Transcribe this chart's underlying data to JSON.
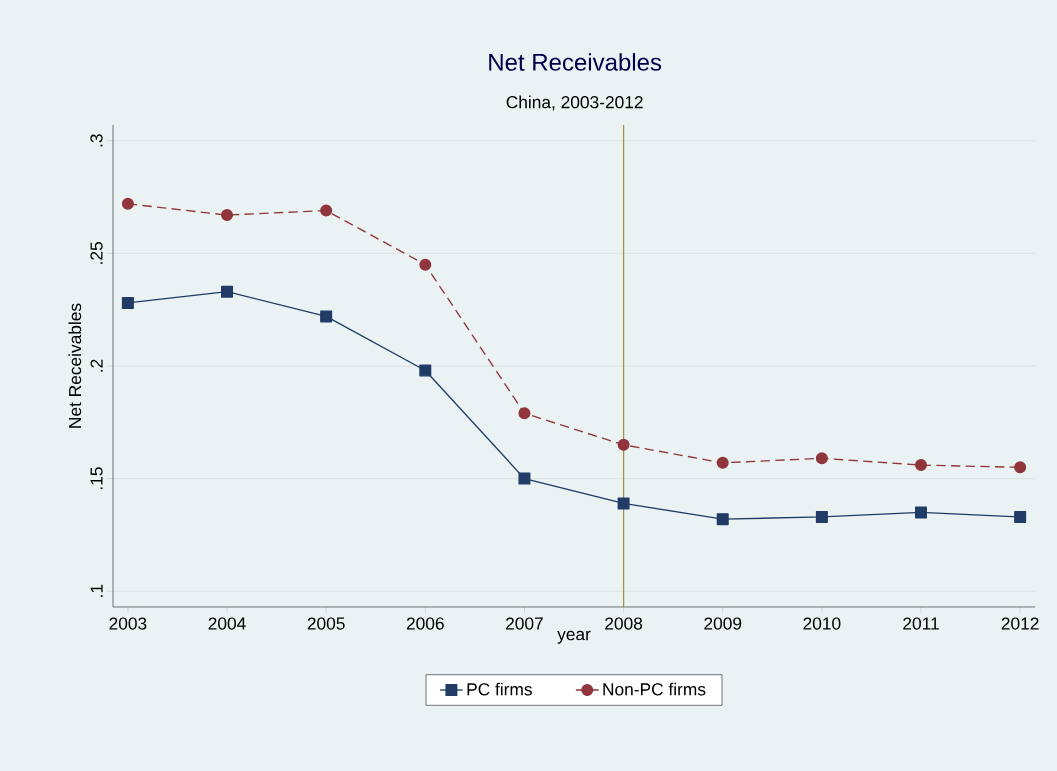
{
  "chart_data": {
    "type": "line",
    "title": "Net Receivables",
    "subtitle": "China, 2003-2012",
    "xlabel": "year",
    "ylabel": "Net Receivables",
    "x": [
      2003,
      2004,
      2005,
      2006,
      2007,
      2008,
      2009,
      2010,
      2011,
      2012
    ],
    "series": [
      {
        "name": "PC firms",
        "color": "#1f3b66",
        "marker": "square",
        "line_style": "solid",
        "values": [
          0.228,
          0.233,
          0.222,
          0.198,
          0.15,
          0.139,
          0.132,
          0.133,
          0.135,
          0.133
        ]
      },
      {
        "name": "Non-PC firms",
        "color": "#90353b",
        "marker": "circle",
        "line_style": "dashed",
        "values": [
          0.272,
          0.267,
          0.269,
          0.245,
          0.179,
          0.165,
          0.157,
          0.159,
          0.156,
          0.155
        ]
      }
    ],
    "xlim": [
      2002.85,
      2012.15
    ],
    "xticks": [
      2003,
      2004,
      2005,
      2006,
      2007,
      2008,
      2009,
      2010,
      2011,
      2012
    ],
    "ylim": [
      0.093,
      0.307
    ],
    "yticks": [
      {
        "value": 0.1,
        "label": ".1"
      },
      {
        "value": 0.15,
        "label": ".15"
      },
      {
        "value": 0.2,
        "label": ".2"
      },
      {
        "value": 0.25,
        "label": ".25"
      },
      {
        "value": 0.3,
        "label": ".3"
      }
    ],
    "ref_lines": [
      {
        "axis": "x",
        "value": 2008,
        "color": "#a8904a"
      }
    ],
    "grid": "y",
    "legend": "bottom"
  }
}
